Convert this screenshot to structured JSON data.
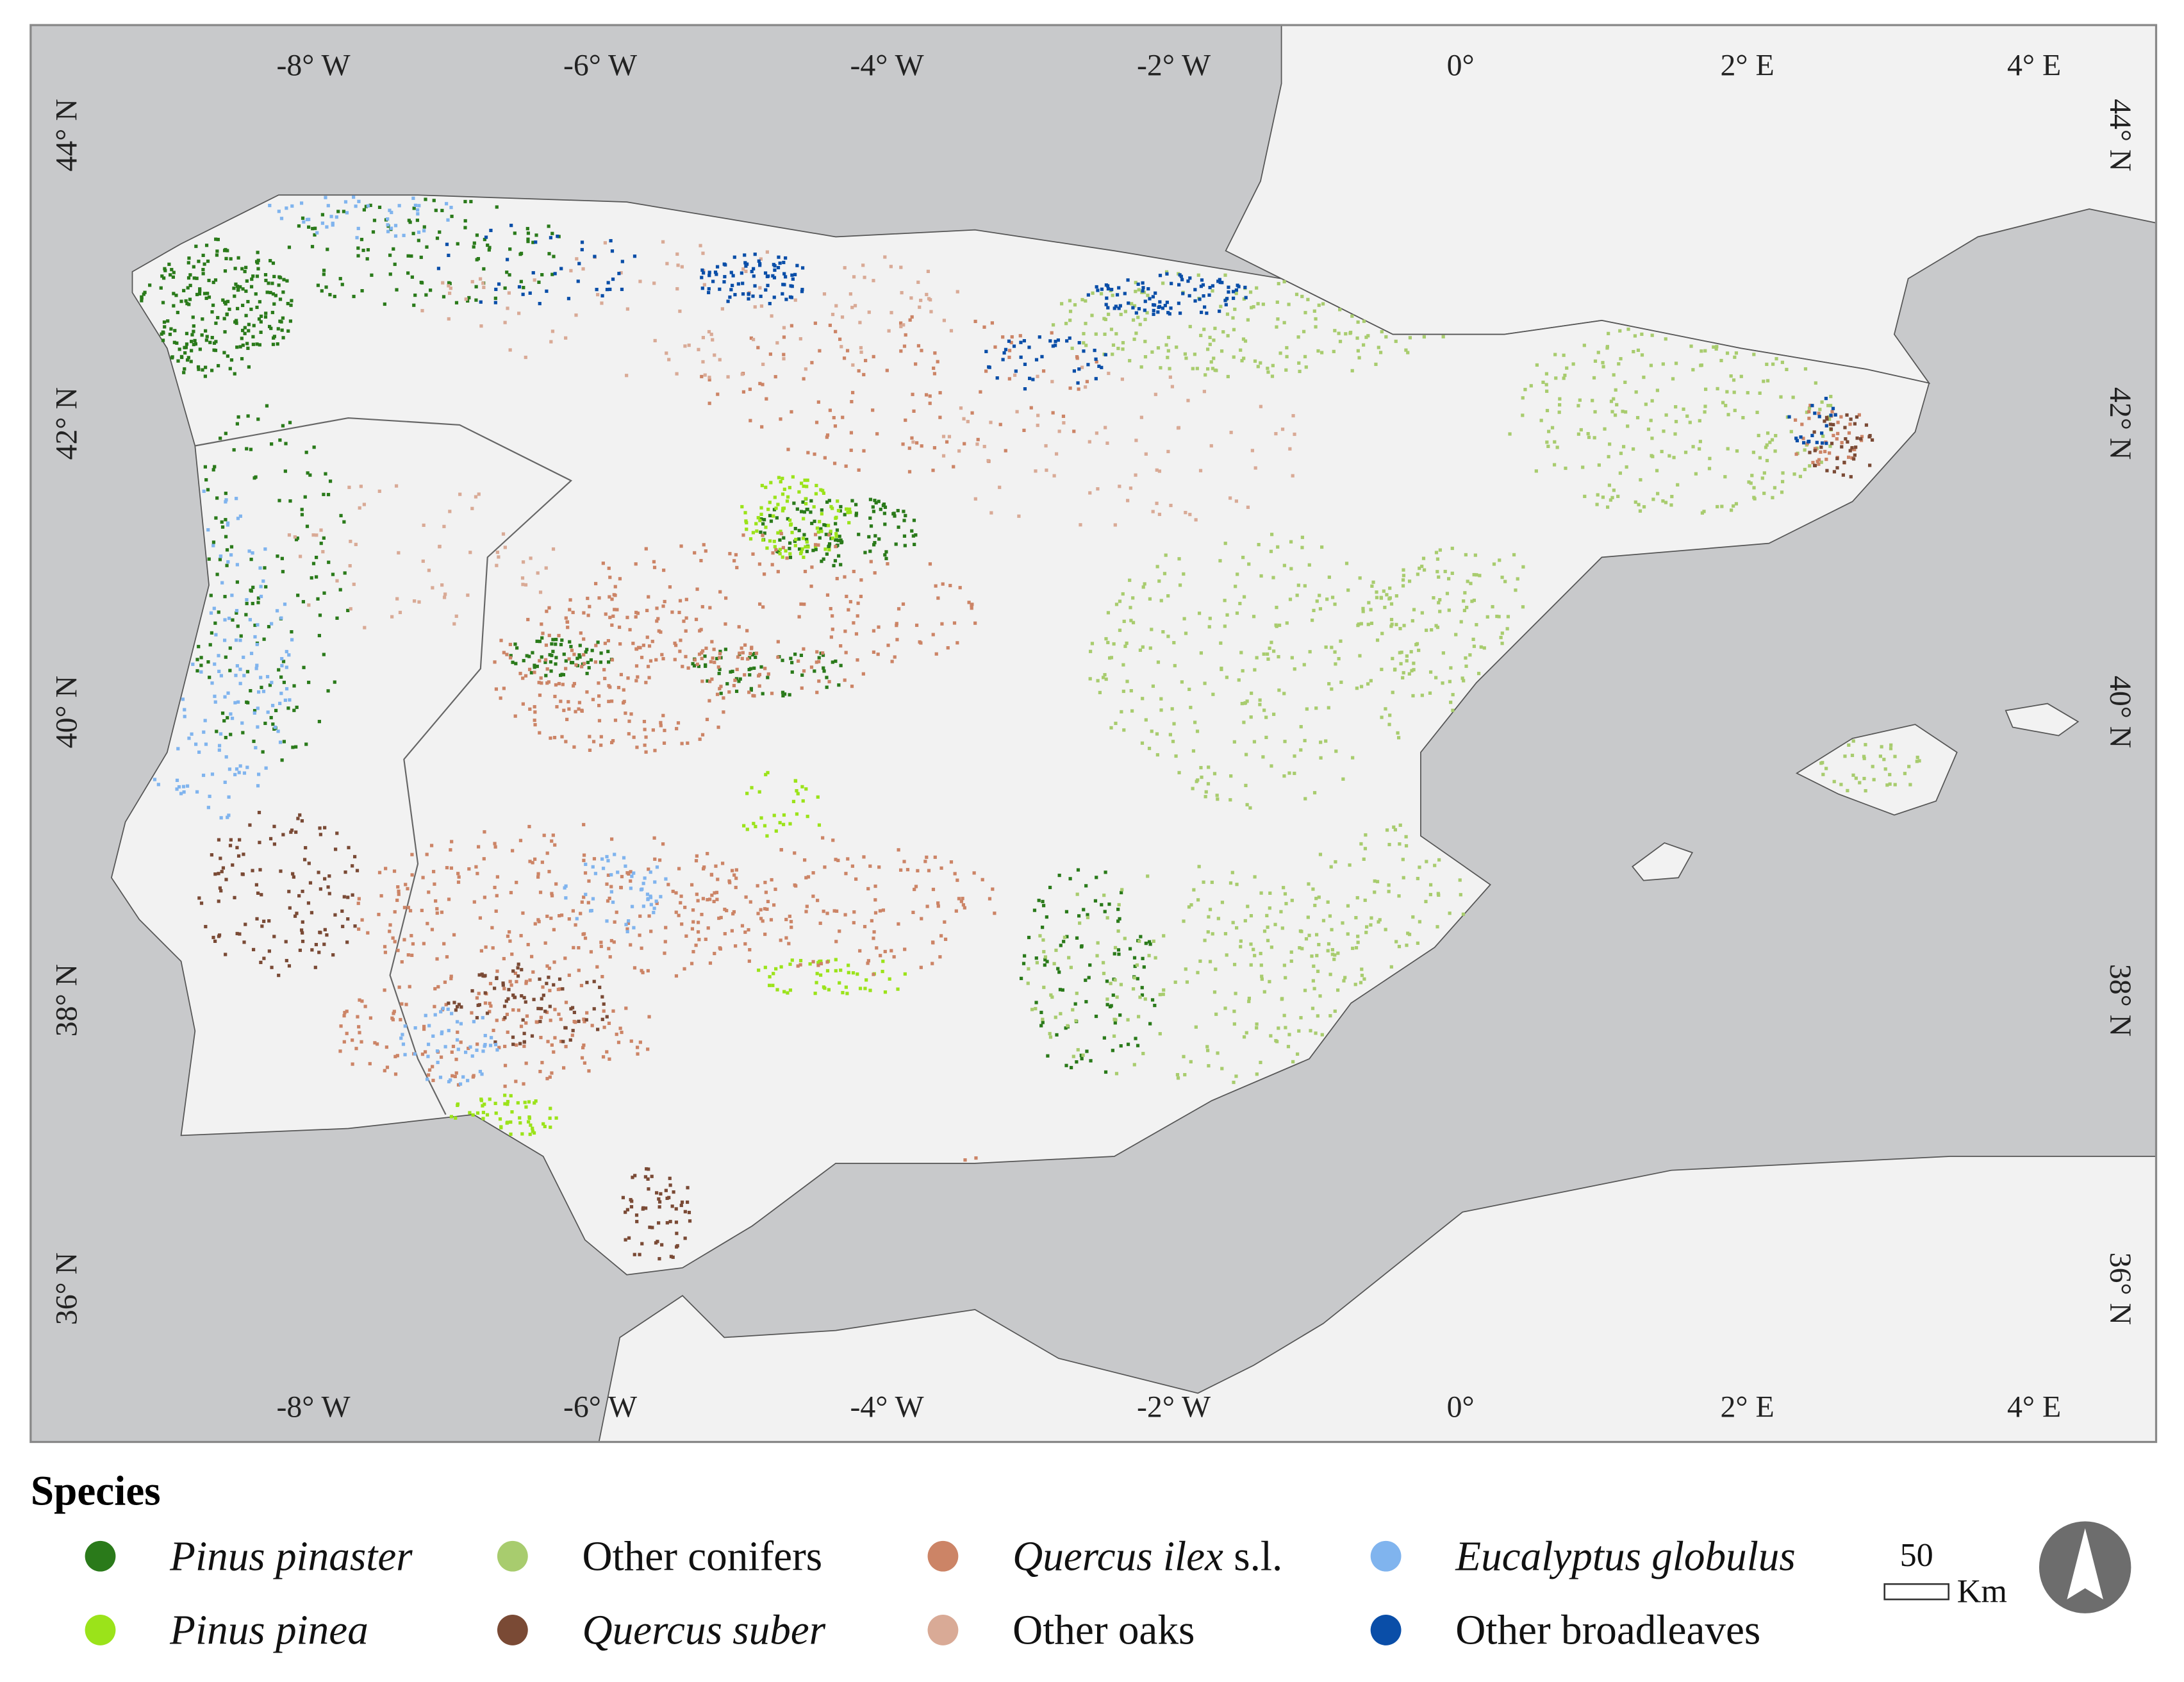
{
  "map": {
    "longitude_labels": [
      "-8° W",
      "-6° W",
      "-4° W",
      "-2° W",
      "0°",
      "2° E",
      "4° E"
    ],
    "latitude_labels": [
      "44° N",
      "42° N",
      "40° N",
      "38° N",
      "36° N"
    ],
    "sea_color": "#c8c9cb",
    "land_color": "#f2f2f2"
  },
  "legend": {
    "title": "Species",
    "items": [
      {
        "italic": "Pinus pinaster",
        "color": "#2a7a1a"
      },
      {
        "plain": "Other conifers",
        "color": "#a8cc6e"
      },
      {
        "italic": "Quercus ilex",
        "plain": "s.l.",
        "color": "#cc8466"
      },
      {
        "italic": "Eucalyptus globulus",
        "color": "#80b4ee"
      },
      {
        "italic": "Pinus pinea",
        "color": "#9be31a"
      },
      {
        "italic": "Quercus suber",
        "color": "#7a4a35"
      },
      {
        "plain": "Other oaks",
        "color": "#d9aa96"
      },
      {
        "plain": "Other broadleaves",
        "color": "#0a4ea8"
      }
    ]
  },
  "scale_bar": {
    "distance": "50",
    "unit": "Km"
  }
}
